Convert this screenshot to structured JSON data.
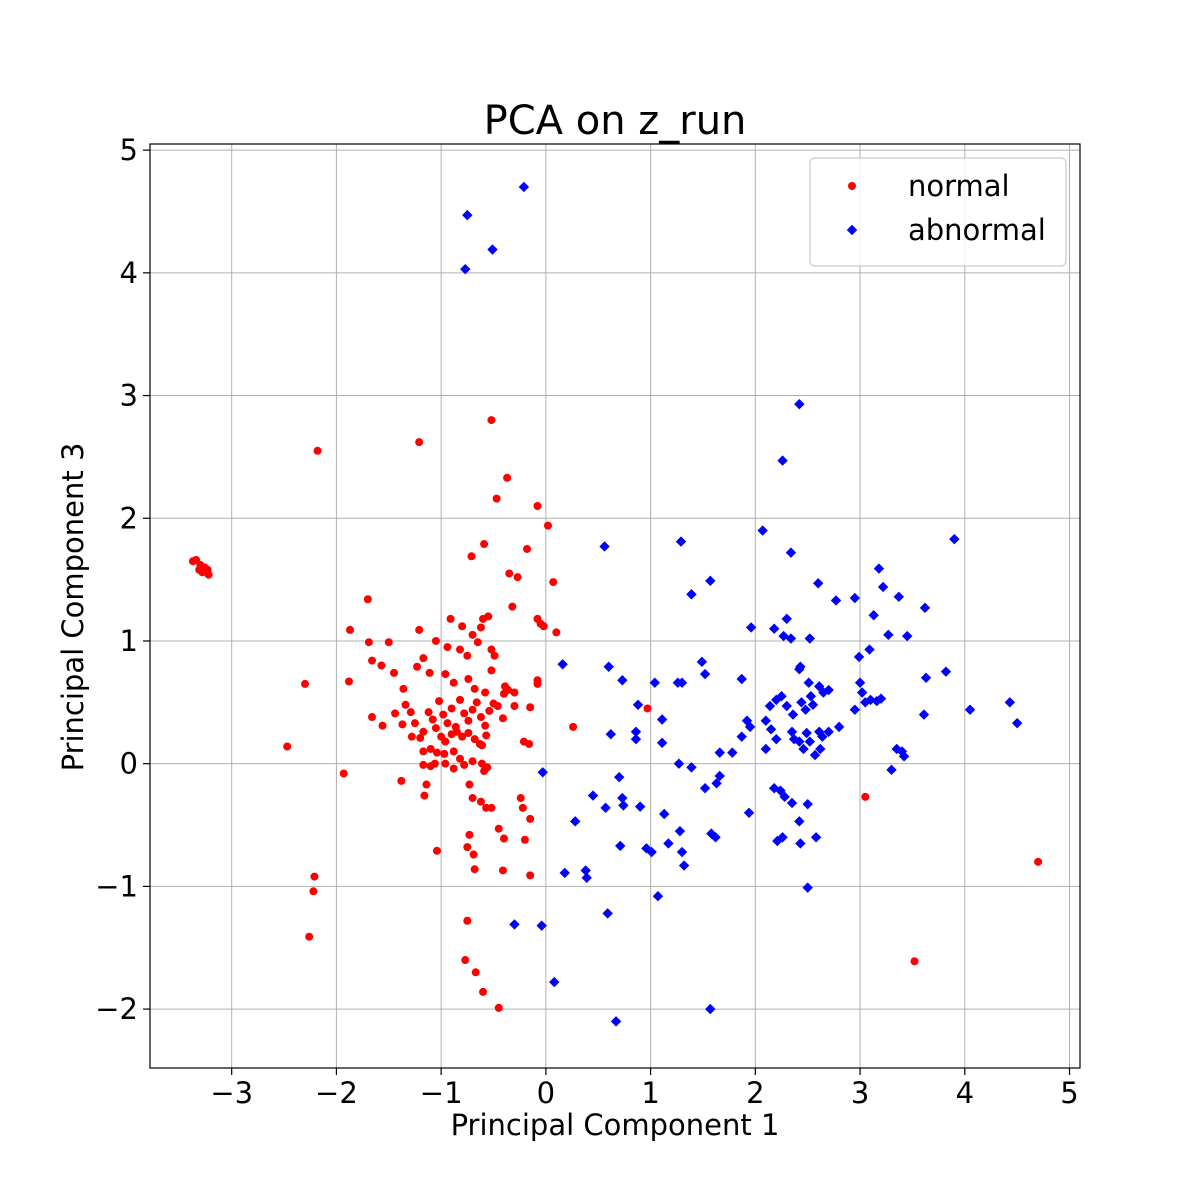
{
  "chart_data": {
    "type": "scatter",
    "title": "PCA on z_run",
    "xlabel": "Principal Component 1",
    "ylabel": "Principal Component 3",
    "xlim": [
      -3.78,
      5.1
    ],
    "ylim": [
      -2.48,
      5.05
    ],
    "xticks": [
      -3,
      -2,
      -1,
      0,
      1,
      2,
      3,
      4,
      5
    ],
    "yticks": [
      -2,
      -1,
      0,
      1,
      2,
      3,
      4,
      5
    ],
    "xtick_labels": [
      "−3",
      "−2",
      "−1",
      "0",
      "1",
      "2",
      "3",
      "4",
      "5"
    ],
    "ytick_labels": [
      "−2",
      "−1",
      "0",
      "1",
      "2",
      "3",
      "4",
      "5"
    ],
    "grid": true,
    "legend": {
      "position": "top-right"
    },
    "series": [
      {
        "name": "normal",
        "color": "#ff0000",
        "marker": "circle",
        "points": [
          [
            -3.37,
            1.65
          ],
          [
            -3.34,
            1.66
          ],
          [
            -3.31,
            1.58
          ],
          [
            -3.28,
            1.56
          ],
          [
            -3.26,
            1.6
          ],
          [
            -3.23,
            1.58
          ],
          [
            -3.22,
            1.54
          ],
          [
            -3.3,
            1.62
          ],
          [
            -2.18,
            2.55
          ],
          [
            -1.21,
            2.62
          ],
          [
            -0.52,
            2.8
          ],
          [
            -0.37,
            2.33
          ],
          [
            -0.47,
            2.16
          ],
          [
            -0.08,
            2.1
          ],
          [
            0.02,
            1.94
          ],
          [
            -0.59,
            1.79
          ],
          [
            -0.18,
            1.75
          ],
          [
            -0.71,
            1.69
          ],
          [
            0.07,
            1.48
          ],
          [
            -0.35,
            1.55
          ],
          [
            -0.27,
            1.52
          ],
          [
            -0.32,
            1.28
          ],
          [
            -1.7,
            1.34
          ],
          [
            -1.87,
            1.09
          ],
          [
            -1.5,
            0.99
          ],
          [
            -1.21,
            1.09
          ],
          [
            -1.69,
            0.99
          ],
          [
            -0.05,
            1.14
          ],
          [
            -0.08,
            1.18
          ],
          [
            -0.02,
            1.12
          ],
          [
            0.1,
            1.07
          ],
          [
            -0.91,
            1.18
          ],
          [
            -0.8,
            1.12
          ],
          [
            -0.6,
            1.18
          ],
          [
            -0.55,
            1.2
          ],
          [
            -0.62,
            1.11
          ],
          [
            -0.7,
            1.05
          ],
          [
            -0.94,
            0.95
          ],
          [
            -1.05,
            1.0
          ],
          [
            -0.82,
            0.93
          ],
          [
            -0.65,
            0.99
          ],
          [
            -0.52,
            0.93
          ],
          [
            -0.75,
            0.88
          ],
          [
            -2.3,
            0.65
          ],
          [
            -1.88,
            0.67
          ],
          [
            -1.66,
            0.84
          ],
          [
            -1.57,
            0.8
          ],
          [
            -1.45,
            0.74
          ],
          [
            -1.36,
            0.61
          ],
          [
            -1.23,
            0.79
          ],
          [
            -1.17,
            0.86
          ],
          [
            -1.11,
            0.74
          ],
          [
            -0.96,
            0.73
          ],
          [
            -0.88,
            0.66
          ],
          [
            -0.74,
            0.69
          ],
          [
            -0.68,
            0.61
          ],
          [
            -0.58,
            0.58
          ],
          [
            -0.52,
            0.76
          ],
          [
            -0.49,
            0.88
          ],
          [
            -0.36,
            0.6
          ],
          [
            -0.3,
            0.58
          ],
          [
            -0.39,
            0.63
          ],
          [
            -0.4,
            0.57
          ],
          [
            -0.08,
            0.65
          ],
          [
            -0.08,
            0.68
          ],
          [
            -1.66,
            0.38
          ],
          [
            -1.56,
            0.31
          ],
          [
            -1.44,
            0.41
          ],
          [
            -1.37,
            0.32
          ],
          [
            -1.34,
            0.48
          ],
          [
            -1.29,
            0.42
          ],
          [
            -1.25,
            0.33
          ],
          [
            -1.17,
            0.26
          ],
          [
            -1.12,
            0.42
          ],
          [
            -1.08,
            0.36
          ],
          [
            -1.02,
            0.51
          ],
          [
            -0.98,
            0.4
          ],
          [
            -0.94,
            0.33
          ],
          [
            -0.9,
            0.45
          ],
          [
            -0.86,
            0.3
          ],
          [
            -0.82,
            0.52
          ],
          [
            -0.78,
            0.41
          ],
          [
            -0.74,
            0.35
          ],
          [
            -0.7,
            0.44
          ],
          [
            -0.66,
            0.5
          ],
          [
            -0.62,
            0.38
          ],
          [
            -0.58,
            0.31
          ],
          [
            -0.54,
            0.43
          ],
          [
            -0.5,
            0.49
          ],
          [
            -0.46,
            0.47
          ],
          [
            -0.41,
            0.37
          ],
          [
            -0.3,
            0.47
          ],
          [
            -0.15,
            0.46
          ],
          [
            -0.21,
            0.18
          ],
          [
            -0.16,
            0.16
          ],
          [
            -2.47,
            0.14
          ],
          [
            -1.28,
            0.22
          ],
          [
            -1.2,
            0.21
          ],
          [
            -1.05,
            0.29
          ],
          [
            -1.0,
            0.22
          ],
          [
            -0.96,
            0.18
          ],
          [
            -0.9,
            0.24
          ],
          [
            -0.85,
            0.26
          ],
          [
            -0.8,
            0.22
          ],
          [
            -0.74,
            0.25
          ],
          [
            -0.68,
            0.2
          ],
          [
            -0.61,
            0.15
          ],
          [
            -0.57,
            0.23
          ],
          [
            -0.63,
            0.16
          ],
          [
            -1.17,
            0.1
          ],
          [
            -1.1,
            0.12
          ],
          [
            -1.04,
            0.09
          ],
          [
            -0.97,
            0.08
          ],
          [
            -0.88,
            0.1
          ],
          [
            -0.82,
            0.04
          ],
          [
            -0.7,
            0.02
          ],
          [
            -0.61,
            0.0
          ],
          [
            -0.56,
            -0.03
          ],
          [
            -1.17,
            -0.01
          ],
          [
            -1.1,
            -0.02
          ],
          [
            -1.06,
            0.0
          ],
          [
            -0.96,
            0.0
          ],
          [
            -0.88,
            -0.04
          ],
          [
            -0.78,
            -0.01
          ],
          [
            -0.59,
            -0.06
          ],
          [
            -1.93,
            -0.08
          ],
          [
            -1.38,
            -0.14
          ],
          [
            -1.14,
            -0.17
          ],
          [
            -1.16,
            -0.26
          ],
          [
            -0.73,
            -0.17
          ],
          [
            -0.7,
            -0.28
          ],
          [
            -0.57,
            -0.36
          ],
          [
            -0.52,
            -0.36
          ],
          [
            -0.24,
            -0.28
          ],
          [
            -0.22,
            -0.36
          ],
          [
            -0.45,
            -0.53
          ],
          [
            -0.62,
            -0.31
          ],
          [
            -0.15,
            -0.45
          ],
          [
            -0.2,
            -0.62
          ],
          [
            -0.4,
            -0.61
          ],
          [
            -0.73,
            -0.58
          ],
          [
            -1.04,
            -0.71
          ],
          [
            -0.75,
            -0.68
          ],
          [
            -0.69,
            -0.74
          ],
          [
            -0.68,
            -0.86
          ],
          [
            -0.41,
            -0.87
          ],
          [
            -0.15,
            -0.91
          ],
          [
            -2.21,
            -0.92
          ],
          [
            -2.22,
            -1.04
          ],
          [
            -2.26,
            -1.41
          ],
          [
            -0.75,
            -1.28
          ],
          [
            -0.77,
            -1.6
          ],
          [
            -0.67,
            -1.7
          ],
          [
            -0.6,
            -1.86
          ],
          [
            -0.45,
            -1.99
          ],
          [
            0.26,
            0.3
          ],
          [
            0.97,
            0.45
          ],
          [
            3.05,
            -0.27
          ],
          [
            3.52,
            -1.61
          ],
          [
            4.7,
            -0.8
          ]
        ]
      },
      {
        "name": "abnormal",
        "color": "#0000ff",
        "marker": "diamond",
        "points": [
          [
            -0.75,
            4.47
          ],
          [
            -0.21,
            4.7
          ],
          [
            -0.51,
            4.19
          ],
          [
            -0.77,
            4.03
          ],
          [
            2.42,
            2.93
          ],
          [
            2.26,
            2.47
          ],
          [
            3.9,
            1.83
          ],
          [
            2.07,
            1.9
          ],
          [
            0.56,
            1.77
          ],
          [
            1.29,
            1.81
          ],
          [
            2.34,
            1.72
          ],
          [
            1.57,
            1.49
          ],
          [
            1.39,
            1.38
          ],
          [
            2.6,
            1.47
          ],
          [
            3.18,
            1.59
          ],
          [
            3.22,
            1.44
          ],
          [
            2.77,
            1.33
          ],
          [
            2.95,
            1.35
          ],
          [
            3.37,
            1.36
          ],
          [
            3.13,
            1.21
          ],
          [
            3.62,
            1.27
          ],
          [
            1.96,
            1.11
          ],
          [
            2.18,
            1.1
          ],
          [
            2.27,
            1.04
          ],
          [
            2.3,
            1.18
          ],
          [
            2.34,
            1.02
          ],
          [
            2.52,
            1.02
          ],
          [
            3.27,
            1.05
          ],
          [
            3.45,
            1.04
          ],
          [
            3.09,
            0.93
          ],
          [
            2.99,
            0.87
          ],
          [
            0.16,
            0.81
          ],
          [
            0.6,
            0.79
          ],
          [
            1.49,
            0.83
          ],
          [
            1.52,
            0.73
          ],
          [
            2.42,
            0.77
          ],
          [
            2.43,
            0.79
          ],
          [
            3.82,
            0.75
          ],
          [
            0.73,
            0.68
          ],
          [
            1.04,
            0.66
          ],
          [
            1.26,
            0.66
          ],
          [
            1.3,
            0.66
          ],
          [
            1.87,
            0.69
          ],
          [
            2.51,
            0.66
          ],
          [
            2.61,
            0.63
          ],
          [
            2.65,
            0.58
          ],
          [
            2.7,
            0.6
          ],
          [
            2.53,
            0.55
          ],
          [
            3.0,
            0.66
          ],
          [
            3.02,
            0.58
          ],
          [
            3.63,
            0.7
          ],
          [
            4.05,
            0.44
          ],
          [
            4.43,
            0.5
          ],
          [
            4.5,
            0.33
          ],
          [
            0.88,
            0.48
          ],
          [
            1.11,
            0.36
          ],
          [
            2.14,
            0.47
          ],
          [
            2.2,
            0.52
          ],
          [
            2.25,
            0.55
          ],
          [
            2.3,
            0.47
          ],
          [
            2.36,
            0.4
          ],
          [
            2.44,
            0.5
          ],
          [
            2.48,
            0.44
          ],
          [
            2.55,
            0.48
          ],
          [
            2.95,
            0.44
          ],
          [
            3.05,
            0.5
          ],
          [
            3.1,
            0.52
          ],
          [
            3.16,
            0.51
          ],
          [
            3.2,
            0.53
          ],
          [
            3.61,
            0.4
          ],
          [
            0.62,
            0.24
          ],
          [
            0.86,
            0.26
          ],
          [
            0.86,
            0.2
          ],
          [
            1.11,
            0.17
          ],
          [
            1.92,
            0.35
          ],
          [
            1.95,
            0.3
          ],
          [
            2.1,
            0.35
          ],
          [
            2.15,
            0.28
          ],
          [
            2.2,
            0.2
          ],
          [
            2.35,
            0.26
          ],
          [
            2.37,
            0.2
          ],
          [
            2.42,
            0.18
          ],
          [
            2.49,
            0.25
          ],
          [
            2.52,
            0.18
          ],
          [
            2.61,
            0.26
          ],
          [
            2.64,
            0.22
          ],
          [
            2.7,
            0.26
          ],
          [
            2.8,
            0.3
          ],
          [
            3.35,
            0.12
          ],
          [
            3.4,
            0.1
          ],
          [
            3.42,
            0.06
          ],
          [
            1.87,
            0.22
          ],
          [
            1.66,
            0.09
          ],
          [
            1.78,
            0.09
          ],
          [
            2.1,
            0.12
          ],
          [
            2.46,
            0.12
          ],
          [
            2.57,
            0.07
          ],
          [
            2.62,
            0.12
          ],
          [
            1.27,
            0.0
          ],
          [
            1.39,
            -0.03
          ],
          [
            1.66,
            -0.1
          ],
          [
            1.63,
            -0.16
          ],
          [
            3.3,
            -0.05
          ],
          [
            0.7,
            -0.11
          ],
          [
            0.73,
            -0.28
          ],
          [
            0.45,
            -0.26
          ],
          [
            0.74,
            -0.34
          ],
          [
            0.57,
            -0.36
          ],
          [
            0.9,
            -0.35
          ],
          [
            1.52,
            -0.2
          ],
          [
            2.18,
            -0.2
          ],
          [
            2.24,
            -0.22
          ],
          [
            2.28,
            -0.27
          ],
          [
            2.35,
            -0.32
          ],
          [
            2.5,
            -0.33
          ],
          [
            1.94,
            -0.4
          ],
          [
            1.13,
            -0.41
          ],
          [
            -0.03,
            -0.07
          ],
          [
            0.28,
            -0.47
          ],
          [
            1.28,
            -0.55
          ],
          [
            0.71,
            -0.67
          ],
          [
            0.96,
            -0.69
          ],
          [
            1.01,
            -0.72
          ],
          [
            1.17,
            -0.65
          ],
          [
            1.3,
            -0.72
          ],
          [
            1.32,
            -0.83
          ],
          [
            1.58,
            -0.57
          ],
          [
            1.62,
            -0.6
          ],
          [
            2.21,
            -0.63
          ],
          [
            2.26,
            -0.6
          ],
          [
            2.43,
            -0.65
          ],
          [
            2.42,
            -0.47
          ],
          [
            2.58,
            -0.6
          ],
          [
            2.5,
            -1.01
          ],
          [
            0.38,
            -0.87
          ],
          [
            0.39,
            -0.93
          ],
          [
            0.18,
            -0.89
          ],
          [
            0.59,
            -1.22
          ],
          [
            1.07,
            -1.08
          ],
          [
            -0.3,
            -1.31
          ],
          [
            -0.04,
            -1.32
          ],
          [
            0.08,
            -1.78
          ],
          [
            0.67,
            -2.1
          ],
          [
            1.57,
            -2.0
          ]
        ]
      }
    ]
  }
}
